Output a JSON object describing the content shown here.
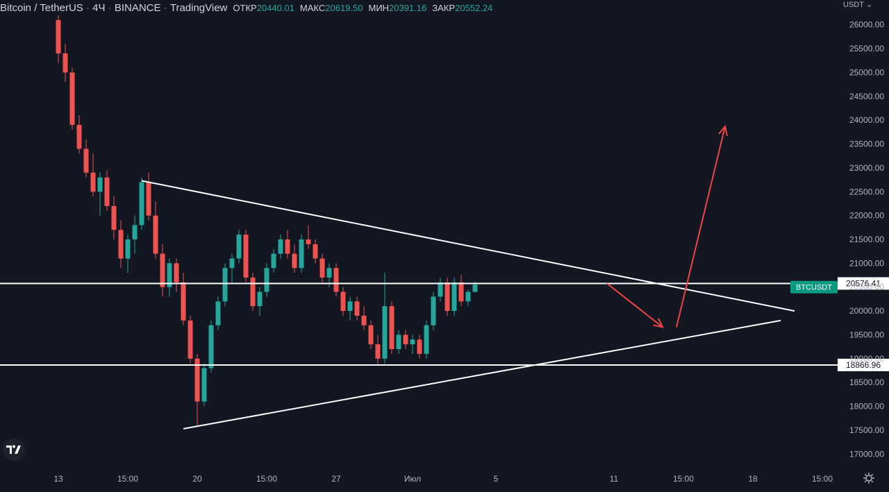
{
  "header": {
    "symbol": "Bitcoin / TetherUS",
    "interval": "4Ч",
    "exchange": "BINANCE",
    "source": "TradingView",
    "open_label": "ОТКР",
    "open_value": "20440.01",
    "high_label": "МАКС",
    "high_value": "20619.50",
    "low_label": "МИН",
    "low_value": "20391.16",
    "close_label": "ЗАКР",
    "close_value": "20552.24"
  },
  "price_axis": {
    "currency": "USDT",
    "currency_chevron": "chevron-down-icon"
  },
  "colors": {
    "background": "#131722",
    "up": "#26a69a",
    "down": "#ef5350",
    "lines": "#ffffff",
    "arrow": "#ef4444",
    "badge": "#089981"
  },
  "icons": {
    "logo": "tradingview-logo-icon",
    "settings": "gear-icon"
  },
  "chart_data": {
    "type": "candlestick",
    "ylim": [
      16800,
      26200
    ],
    "y_ticks": [
      17000,
      17500,
      18000,
      18500,
      19000,
      19500,
      20000,
      20500,
      21000,
      21500,
      22000,
      22500,
      23000,
      23500,
      24000,
      24500,
      25000,
      25500,
      26000
    ],
    "y_tick_labels": [
      "17000.00",
      "17500.00",
      "18000.00",
      "18500.00",
      "19000.00",
      "19500.00",
      "20000.00",
      "20500.00",
      "21000.00",
      "21500.00",
      "22000.00",
      "22500.00",
      "23000.00",
      "23500.00",
      "24000.00",
      "24500.00",
      "25000.00",
      "25500.00",
      "26000.00"
    ],
    "x_ticks": [
      {
        "label": "13",
        "bar": 0
      },
      {
        "label": "15:00",
        "bar": 10
      },
      {
        "label": "20",
        "bar": 20
      },
      {
        "label": "15:00",
        "bar": 30
      },
      {
        "label": "27",
        "bar": 40
      },
      {
        "label": "Июл",
        "bar": 51
      },
      {
        "label": "5",
        "bar": 63
      },
      {
        "label": "11",
        "bar": 80
      },
      {
        "label": "15:00",
        "bar": 90
      },
      {
        "label": "18",
        "bar": 100
      },
      {
        "label": "15:00",
        "bar": 110
      }
    ],
    "candles": [
      [
        26100,
        26200,
        25200,
        25400
      ],
      [
        25400,
        25600,
        24800,
        25000
      ],
      [
        25000,
        25100,
        23800,
        23900
      ],
      [
        23900,
        24100,
        23300,
        23400
      ],
      [
        23400,
        23600,
        22800,
        22900
      ],
      [
        22900,
        23300,
        22400,
        22500
      ],
      [
        22500,
        22900,
        22000,
        22800
      ],
      [
        22800,
        22950,
        22100,
        22200
      ],
      [
        22200,
        22400,
        21500,
        21700
      ],
      [
        21700,
        21900,
        20900,
        21100
      ],
      [
        21100,
        21600,
        20800,
        21500
      ],
      [
        21500,
        22000,
        21200,
        21800
      ],
      [
        21800,
        22800,
        21700,
        22700
      ],
      [
        22700,
        22900,
        21900,
        22000
      ],
      [
        22000,
        22300,
        21100,
        21200
      ],
      [
        21200,
        21400,
        20300,
        20500
      ],
      [
        20500,
        21100,
        20300,
        21000
      ],
      [
        21000,
        21100,
        20400,
        20600
      ],
      [
        20600,
        20800,
        19700,
        19800
      ],
      [
        19800,
        19900,
        18900,
        19000
      ],
      [
        19000,
        19100,
        17600,
        18100
      ],
      [
        18100,
        18900,
        18000,
        18800
      ],
      [
        18800,
        19800,
        18700,
        19700
      ],
      [
        19700,
        20300,
        19600,
        20200
      ],
      [
        20200,
        21000,
        20100,
        20900
      ],
      [
        20900,
        21200,
        20600,
        21100
      ],
      [
        21100,
        21700,
        21000,
        21600
      ],
      [
        21600,
        21700,
        20600,
        20700
      ],
      [
        20700,
        20800,
        20000,
        20100
      ],
      [
        20100,
        20500,
        19900,
        20400
      ],
      [
        20400,
        21000,
        20300,
        20900
      ],
      [
        20900,
        21300,
        20800,
        21200
      ],
      [
        21200,
        21600,
        21100,
        21500
      ],
      [
        21500,
        21700,
        21100,
        21200
      ],
      [
        21200,
        21400,
        20800,
        20900
      ],
      [
        20900,
        21600,
        20800,
        21500
      ],
      [
        21500,
        21800,
        21300,
        21400
      ],
      [
        21400,
        21500,
        21000,
        21100
      ],
      [
        21100,
        21200,
        20600,
        20700
      ],
      [
        20700,
        21000,
        20500,
        20900
      ],
      [
        20900,
        21000,
        20300,
        20400
      ],
      [
        20400,
        20500,
        19900,
        20000
      ],
      [
        20000,
        20300,
        19800,
        20200
      ],
      [
        20200,
        20300,
        19800,
        19900
      ],
      [
        19900,
        20100,
        19600,
        19700
      ],
      [
        19700,
        19800,
        19200,
        19300
      ],
      [
        19300,
        19500,
        18900,
        19000
      ],
      [
        19000,
        20800,
        18900,
        20100
      ],
      [
        20100,
        20200,
        19100,
        19200
      ],
      [
        19200,
        19600,
        19100,
        19500
      ],
      [
        19500,
        19600,
        19200,
        19300
      ],
      [
        19300,
        19500,
        19100,
        19400
      ],
      [
        19400,
        19500,
        19000,
        19100
      ],
      [
        19100,
        19800,
        19000,
        19700
      ],
      [
        19700,
        20400,
        19600,
        20300
      ],
      [
        20300,
        20700,
        20200,
        20600
      ],
      [
        20600,
        20700,
        19900,
        20000
      ],
      [
        20000,
        20700,
        19900,
        20600
      ],
      [
        20600,
        20750,
        20100,
        20200
      ],
      [
        20200,
        20450,
        20100,
        20400
      ],
      [
        20400,
        20620,
        20390,
        20552
      ]
    ],
    "levels": [
      {
        "price": 20576.41,
        "label": "20576.41"
      },
      {
        "price": 18866.96,
        "label": "18866.96"
      }
    ],
    "price_badge": {
      "label": "BTCUSDT",
      "price": 20500
    },
    "trendlines": [
      {
        "x1": 12,
        "y1": 22730,
        "x2": 106,
        "y2": 20000
      },
      {
        "x1": 18,
        "y1": 17530,
        "x2": 104,
        "y2": 19800
      }
    ],
    "arrows": [
      {
        "x1": 79,
        "y1": 20576,
        "x2": 87,
        "y2": 19660
      },
      {
        "x1": 89,
        "y1": 19660,
        "x2": 96,
        "y2": 23870
      }
    ]
  }
}
